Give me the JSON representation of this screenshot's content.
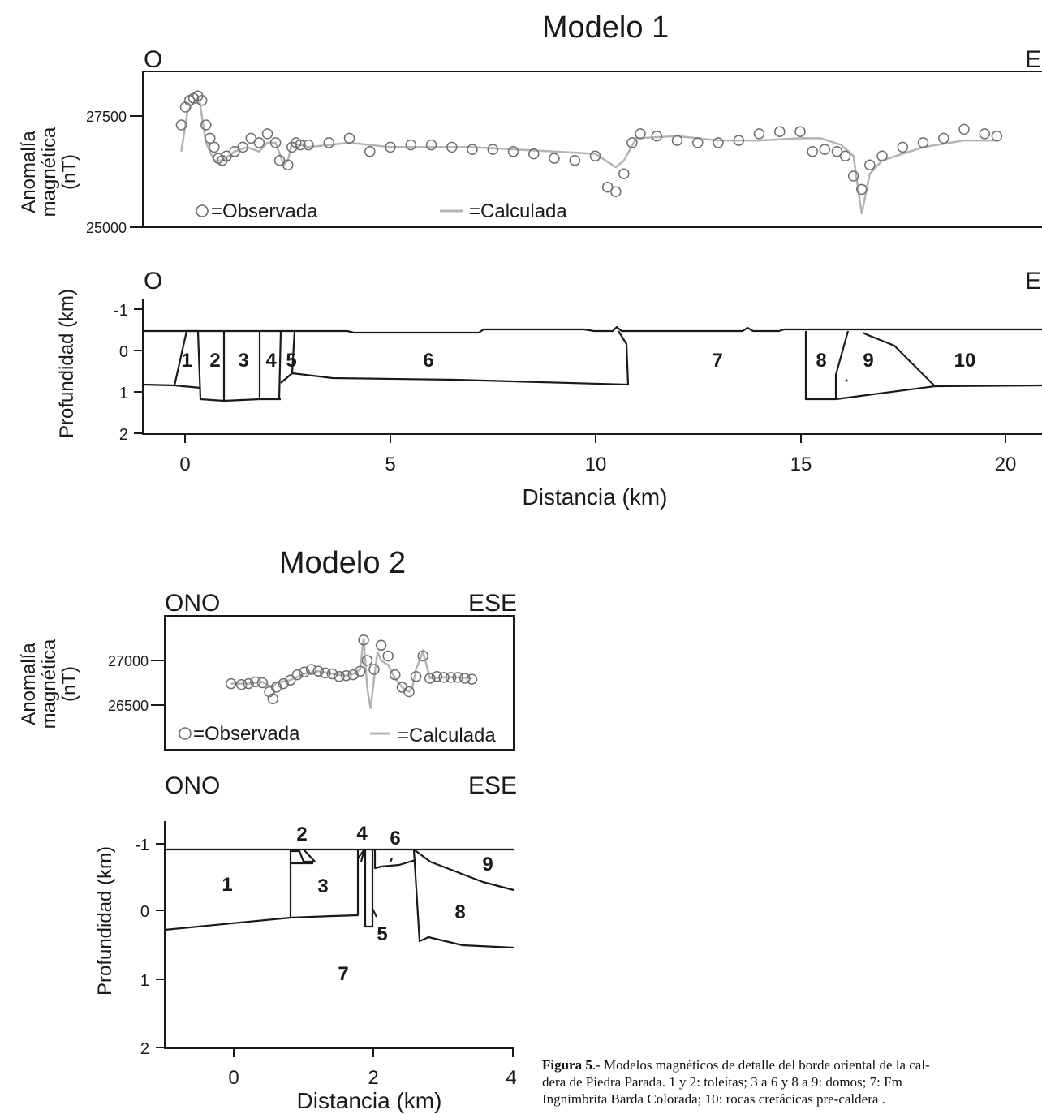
{
  "caption": {
    "label": "Figura 5",
    "line1": ".- Modelos magnéticos de detalle del borde oriental de la cal-",
    "line2": "dera de Piedra Parada. 1 y 2: toleítas; 3 a 6 y 8 a 9: domos; 7: Fm",
    "line3": "Ingnimbrita Barda Colorada;  10: rocas cretácicas pre-caldera ."
  },
  "colors": {
    "observed": "#6e6e6e",
    "calculated": "#b4b4b4",
    "ink": "#1a1a1a"
  },
  "chart_data": [
    {
      "type": "scatter",
      "title": "Modelo 1",
      "panel": "magnetic anomaly",
      "direction_left": "O",
      "direction_right": "E",
      "ylabel": [
        "Anomalía",
        "magnética",
        "(nT)"
      ],
      "yticks": [
        25000,
        27500
      ],
      "ylim": [
        25000,
        28000
      ],
      "xlim": [
        -1,
        21
      ],
      "legend": {
        "observed": "=Observada",
        "calculated": "=Calculada",
        "placement": "bottom"
      },
      "series": [
        {
          "name": "=Observada",
          "x": [
            -0.1,
            0.0,
            0.1,
            0.2,
            0.3,
            0.4,
            0.5,
            0.6,
            0.7,
            0.8,
            0.9,
            1.0,
            1.2,
            1.4,
            1.6,
            1.8,
            2.0,
            2.2,
            2.3,
            2.5,
            2.6,
            2.7,
            2.8,
            3.0,
            3.5,
            4.0,
            4.5,
            5.0,
            5.5,
            6.0,
            6.5,
            7.0,
            7.5,
            8.0,
            8.5,
            9.0,
            9.5,
            10.0,
            10.3,
            10.5,
            10.7,
            10.9,
            11.1,
            11.5,
            12.0,
            12.5,
            13.0,
            13.5,
            14.0,
            14.5,
            15.0,
            15.3,
            15.6,
            15.9,
            16.1,
            16.3,
            16.5,
            16.7,
            17.0,
            17.5,
            18.0,
            18.5,
            19.0,
            19.5,
            19.8
          ],
          "y": [
            27300,
            27700,
            27850,
            27900,
            27950,
            27850,
            27300,
            27000,
            26800,
            26550,
            26500,
            26600,
            26700,
            26800,
            27000,
            26900,
            27100,
            26900,
            26500,
            26400,
            26800,
            26900,
            26850,
            26850,
            26900,
            27000,
            26700,
            26800,
            26850,
            26850,
            26800,
            26750,
            26750,
            26700,
            26650,
            26550,
            26500,
            26600,
            25900,
            25800,
            26200,
            26900,
            27100,
            27050,
            26950,
            26900,
            26900,
            26950,
            27100,
            27150,
            27150,
            26700,
            26750,
            26700,
            26600,
            26150,
            25850,
            26400,
            26600,
            26800,
            26900,
            27000,
            27200,
            27100,
            27050
          ]
        },
        {
          "name": "=Calculada",
          "x": [
            -0.1,
            0.05,
            0.2,
            0.35,
            0.5,
            0.7,
            0.9,
            1.2,
            1.5,
            1.8,
            2.0,
            2.2,
            2.4,
            2.5,
            2.6,
            3.0,
            4.0,
            5.0,
            7.0,
            9.0,
            10.0,
            10.5,
            10.7,
            11.0,
            12.0,
            13.0,
            14.0,
            15.0,
            15.5,
            16.0,
            16.3,
            16.5,
            16.7,
            17.0,
            18.0,
            19.0,
            19.5,
            19.8
          ],
          "y": [
            26700,
            27600,
            27800,
            27800,
            26900,
            26500,
            26500,
            26700,
            26800,
            26700,
            26900,
            26900,
            26400,
            26500,
            26900,
            26800,
            26900,
            26800,
            26800,
            26700,
            26650,
            26350,
            26500,
            27000,
            27050,
            26950,
            26950,
            27000,
            27000,
            26850,
            26600,
            25300,
            26200,
            26500,
            26800,
            26950,
            26950,
            26950
          ]
        }
      ]
    },
    {
      "type": "area",
      "title": "Modelo 1",
      "panel": "geologic model",
      "direction_left": "O",
      "direction_right": "E",
      "ylabel": "Profundidad (km)",
      "xlabel": "Distancia (km)",
      "yticks": [
        -1,
        0,
        1,
        2
      ],
      "xticks": [
        0,
        5,
        10,
        15,
        20
      ],
      "xlim": [
        -1,
        21
      ],
      "ylim": [
        2,
        -1
      ],
      "body_labels": [
        "1",
        "2",
        "3",
        "4",
        "5",
        "6",
        "7",
        "8",
        "9",
        "10"
      ]
    },
    {
      "type": "scatter",
      "title": "Modelo 2",
      "panel": "magnetic anomaly",
      "direction_left": "ONO",
      "direction_right": "ESE",
      "ylabel": [
        "Anomalía",
        "magnética",
        "(nT)"
      ],
      "yticks": [
        26500,
        27000
      ],
      "ylim": [
        26100,
        27400
      ],
      "xlim": [
        -1,
        4
      ],
      "legend": {
        "observed": "=Observada",
        "calculated": "=Calculada",
        "placement": "bottom"
      },
      "series": [
        {
          "name": "=Observada",
          "x": [
            -0.05,
            0.1,
            0.2,
            0.3,
            0.4,
            0.5,
            0.55,
            0.6,
            0.7,
            0.8,
            0.9,
            1.0,
            1.1,
            1.2,
            1.3,
            1.4,
            1.5,
            1.6,
            1.7,
            1.8,
            1.85,
            1.9,
            2.0,
            2.1,
            2.2,
            2.3,
            2.4,
            2.5,
            2.6,
            2.7,
            2.8,
            2.9,
            3.0,
            3.1,
            3.2,
            3.3,
            3.4
          ],
          "y": [
            26740,
            26730,
            26740,
            26760,
            26750,
            26650,
            26570,
            26700,
            26740,
            26780,
            26840,
            26870,
            26900,
            26880,
            26860,
            26850,
            26820,
            26830,
            26840,
            26880,
            27230,
            27000,
            26900,
            27170,
            27050,
            26840,
            26700,
            26650,
            26820,
            27050,
            26800,
            26820,
            26810,
            26810,
            26810,
            26800,
            26790
          ]
        },
        {
          "name": "=Calculada",
          "x": [
            -0.05,
            0.2,
            0.4,
            0.55,
            0.6,
            0.8,
            1.0,
            1.2,
            1.4,
            1.6,
            1.7,
            1.8,
            1.85,
            1.9,
            1.95,
            2.0,
            2.05,
            2.1,
            2.2,
            2.3,
            2.4,
            2.5,
            2.55,
            2.6,
            2.7,
            2.8,
            3.0,
            3.2,
            3.4
          ],
          "y": [
            26740,
            26740,
            26760,
            26700,
            26750,
            26780,
            26850,
            26880,
            26850,
            26830,
            26850,
            26900,
            27250,
            26700,
            26460,
            26800,
            27100,
            27000,
            26950,
            26800,
            26700,
            26650,
            26700,
            26900,
            27100,
            26800,
            26810,
            26810,
            26800
          ]
        }
      ]
    },
    {
      "type": "area",
      "title": "Modelo 2",
      "panel": "geologic model",
      "direction_left": "ONO",
      "direction_right": "ESE",
      "ylabel": "Profundidad (km)",
      "xlabel": "Distancia (km)",
      "yticks": [
        -1,
        0,
        1,
        2
      ],
      "xticks": [
        0,
        2,
        4
      ],
      "xlim": [
        -1,
        4
      ],
      "ylim": [
        2,
        -1.3
      ],
      "body_labels": [
        "1",
        "2",
        "3",
        "4",
        "5",
        "6",
        "7",
        "8",
        "9"
      ]
    }
  ]
}
